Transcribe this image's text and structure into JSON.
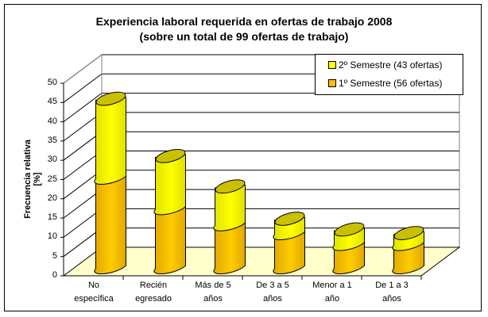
{
  "chart_data": {
    "type": "bar",
    "stacked": true,
    "style": "3d-cylinder",
    "title": "Experiencia laboral requerida en ofertas de trabajo 2008",
    "subtitle": "(sobre un total de 99 ofertas de trabajo)",
    "xlabel": "",
    "ylabel": "Frecuencia relativa [%]",
    "ylim": [
      0,
      50
    ],
    "yticks": [
      "0",
      "5",
      "10",
      "15",
      "20",
      "25",
      "30",
      "35",
      "40",
      "45",
      "50"
    ],
    "categories": [
      [
        "No",
        "específica"
      ],
      [
        "Recién",
        "egresado"
      ],
      [
        "Más de 5",
        "años"
      ],
      [
        "De 3 a 5",
        "años"
      ],
      [
        "Menor a 1",
        "año"
      ],
      [
        "De 1 a 3",
        "años"
      ]
    ],
    "series": [
      {
        "name": "1º Semestre (56 ofertas)",
        "color": "#FFC000",
        "values": [
          25,
          16.5,
          12,
          9.5,
          6.5,
          6.5
        ]
      },
      {
        "name": "2º Semestre (43 ofertas)",
        "color": "#FFFF00",
        "values": [
          22,
          14.5,
          10.5,
          4,
          4,
          3
        ]
      }
    ],
    "legend_order": [
      1,
      0
    ],
    "legend_position": "top-right",
    "grid": true
  }
}
